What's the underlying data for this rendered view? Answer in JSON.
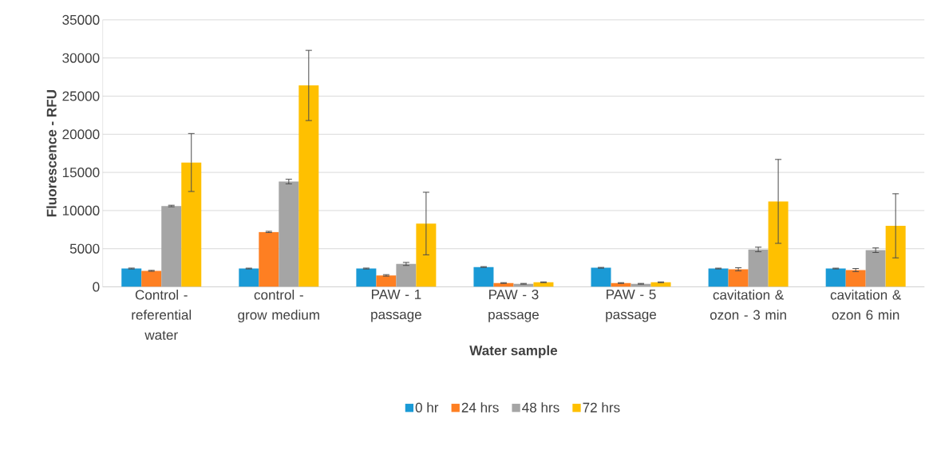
{
  "chart_data": {
    "type": "bar",
    "xlabel": "Water sample",
    "ylabel": "Fluorescence - RFU",
    "categories": [
      "Control - referential water",
      "control - grow medium",
      "PAW - 1 passage",
      "PAW - 3 passage",
      "PAW - 5 passage",
      "cavitation & ozon - 3 min",
      "cavitation & ozon 6 min"
    ],
    "series": [
      {
        "name": "0 hr",
        "color": "#1a9ad6",
        "values": [
          2400,
          2400,
          2400,
          2600,
          2500,
          2400,
          2400
        ],
        "errors": [
          60,
          50,
          60,
          50,
          50,
          50,
          50
        ]
      },
      {
        "name": "24 hrs",
        "color": "#fe7f22",
        "values": [
          2100,
          7200,
          1500,
          500,
          500,
          2300,
          2200
        ],
        "errors": [
          60,
          80,
          100,
          50,
          50,
          200,
          200
        ]
      },
      {
        "name": "48 hrs",
        "color": "#a5a5a5",
        "values": [
          10600,
          13800,
          3000,
          400,
          400,
          4900,
          4800
        ],
        "errors": [
          100,
          300,
          200,
          50,
          50,
          300,
          300
        ]
      },
      {
        "name": "72 hrs",
        "color": "#ffc000",
        "values": [
          16300,
          26400,
          8300,
          600,
          600,
          11200,
          8000
        ],
        "errors": [
          3800,
          4600,
          4100,
          50,
          50,
          5500,
          4200
        ]
      }
    ],
    "ylim": [
      0,
      35000
    ],
    "yticks": [
      0,
      5000,
      10000,
      15000,
      20000,
      25000,
      30000,
      35000
    ],
    "grid": "y",
    "legend": "bottom"
  }
}
